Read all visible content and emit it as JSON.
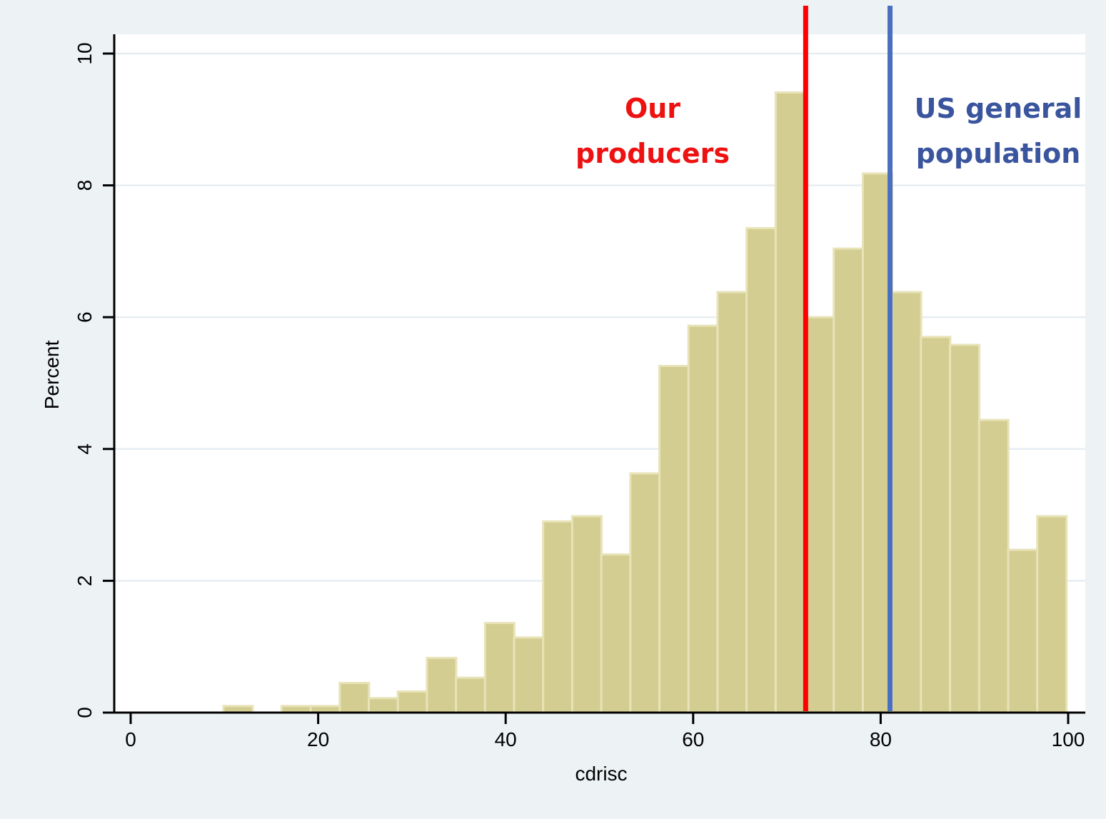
{
  "chart_data": {
    "type": "bar",
    "subtype": "histogram",
    "xlabel": "cdrisc",
    "ylabel": "Percent",
    "xlim": [
      0,
      100
    ],
    "ylim": [
      0,
      10
    ],
    "x_ticks": [
      0,
      20,
      40,
      60,
      80,
      100
    ],
    "y_ticks": [
      0,
      2,
      4,
      6,
      8,
      10
    ],
    "grid": true,
    "bin_width": 3.125,
    "bins_start": [
      9.9,
      13.0,
      16.1,
      19.2,
      22.3,
      25.4,
      28.5,
      31.6,
      34.7,
      37.8,
      40.9,
      44.0,
      47.1,
      50.2,
      53.3,
      56.4,
      59.5,
      62.6,
      65.7,
      68.8,
      71.9,
      75.0,
      78.1,
      81.2,
      84.3,
      87.4,
      90.5,
      93.6,
      96.7
    ],
    "values": [
      0.1,
      0.0,
      0.1,
      0.1,
      0.45,
      0.22,
      0.32,
      0.83,
      0.53,
      1.36,
      1.14,
      2.9,
      2.98,
      2.4,
      3.63,
      5.26,
      5.87,
      6.38,
      7.35,
      9.41,
      6.0,
      7.04,
      8.18,
      6.38,
      5.7,
      5.58,
      4.44,
      2.47,
      2.98
    ],
    "bar_color": "#d4cd91",
    "reference_lines": [
      {
        "x": 72,
        "color": "#ff0000",
        "label_line1": "Our",
        "label_line2": "producers"
      },
      {
        "x": 81,
        "color": "#4a6fc0",
        "label_line1": "US general",
        "label_line2": "population"
      }
    ],
    "annotation_colors": {
      "red": "#ee1111",
      "blue": "#3a559e"
    }
  }
}
